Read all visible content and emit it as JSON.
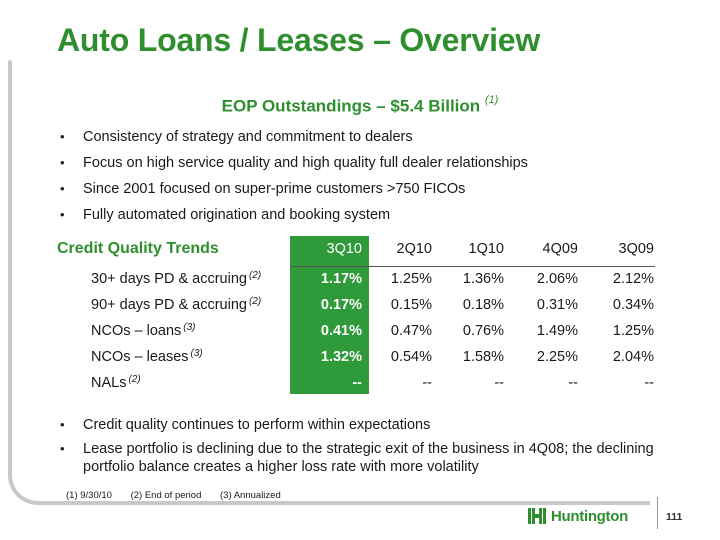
{
  "title": "Auto Loans / Leases – Overview",
  "subtitle": {
    "text": "EOP Outstandings – $5.4 Billion",
    "note": "(1)"
  },
  "bullets": [
    "Consistency of strategy and commitment to dealers",
    "Focus on high service quality and high quality full dealer relationships",
    "Since 2001 focused on super-prime customers >750 FICOs",
    "Fully automated origination and booking system"
  ],
  "credit_quality": {
    "title": "Credit Quality Trends",
    "columns": [
      "3Q10",
      "2Q10",
      "1Q10",
      "4Q09",
      "3Q09"
    ],
    "rows": [
      {
        "label": "30+ days PD & accruing",
        "note": "(2)",
        "values": [
          "1.17%",
          "1.25%",
          "1.36%",
          "2.06%",
          "2.12%"
        ]
      },
      {
        "label": "90+ days PD & accruing",
        "note": "(2)",
        "values": [
          "0.17%",
          "0.15%",
          "0.18%",
          "0.31%",
          "0.34%"
        ]
      },
      {
        "label": "NCOs – loans",
        "note": "(3)",
        "values": [
          "0.41%",
          "0.47%",
          "0.76%",
          "1.49%",
          "1.25%"
        ]
      },
      {
        "label": "NCOs – leases",
        "note": "(3)",
        "values": [
          "1.32%",
          "0.54%",
          "1.58%",
          "2.25%",
          "2.04%"
        ]
      },
      {
        "label": "NALs",
        "note": "(2)",
        "values": [
          "--",
          "--",
          "--",
          "--",
          "--"
        ]
      }
    ]
  },
  "bullets2": [
    "Credit quality continues to perform within expectations",
    "Lease portfolio is declining due to the strategic exit of the business in 4Q08;  the declining portfolio balance creates a higher loss rate with more volatility"
  ],
  "footnotes": [
    "(1)  9/30/10",
    "(2)  End of period",
    "(3)   Annualized"
  ],
  "logo_text": "Huntington",
  "page_number": "111",
  "colors": {
    "brand_green": "#2f8f2f",
    "highlight_green": "#2f9a3a",
    "frame_gray": "#c8c8c8"
  }
}
